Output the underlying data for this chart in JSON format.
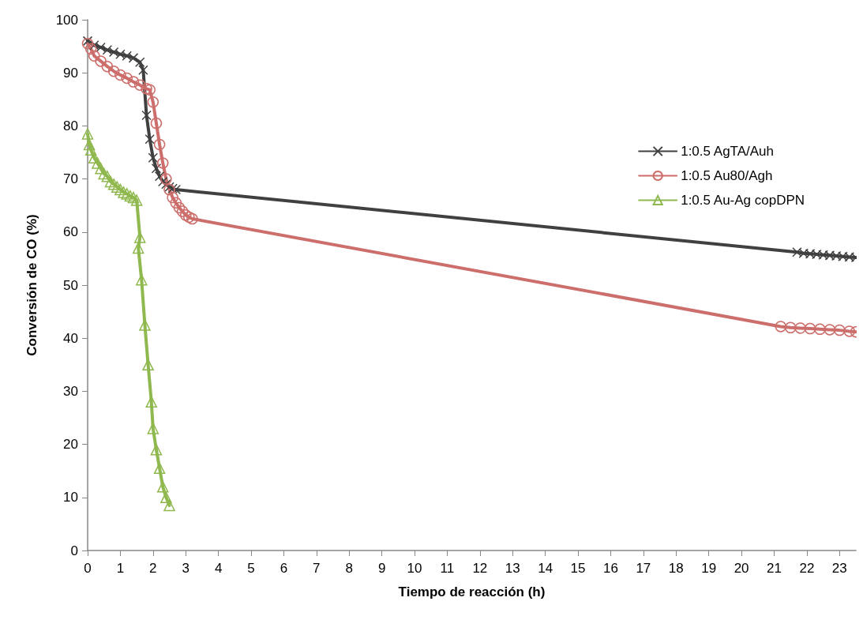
{
  "chart_data": {
    "type": "line",
    "xlabel": "Tiempo de reacción (h)",
    "ylabel": "Conversión de CO (%)",
    "xlim": [
      0,
      23.5
    ],
    "xticks": [
      0,
      1,
      2,
      3,
      4,
      5,
      6,
      7,
      8,
      9,
      10,
      11,
      12,
      13,
      14,
      15,
      16,
      17,
      18,
      19,
      20,
      21,
      22,
      23
    ],
    "ylim": [
      0,
      100
    ],
    "yticks": [
      0,
      10,
      20,
      30,
      40,
      50,
      60,
      70,
      80,
      90,
      100
    ],
    "grid": false,
    "legend": "top right",
    "line_style": "solid",
    "series": [
      {
        "name": "1:0.5 AgTA/Auh",
        "color": "#404040",
        "marker": "cross",
        "x": [
          0,
          0.2,
          0.4,
          0.6,
          0.8,
          1.0,
          1.2,
          1.4,
          1.6,
          1.7,
          1.8,
          1.9,
          2.0,
          2.1,
          2.2,
          2.3,
          2.4,
          2.5,
          2.6,
          2.7,
          21.7,
          21.9,
          22.1,
          22.3,
          22.5,
          22.7,
          22.9,
          23.1,
          23.3,
          23.5
        ],
        "values": [
          96,
          95.2,
          94.8,
          94.3,
          93.9,
          93.5,
          93.2,
          92.8,
          92,
          90.5,
          82,
          77.5,
          74,
          72,
          70.5,
          69.5,
          69,
          68.5,
          68.2,
          68,
          56.2,
          56,
          55.9,
          55.8,
          55.7,
          55.6,
          55.5,
          55.4,
          55.3,
          55.2
        ]
      },
      {
        "name": "1:0.5 Au80/Agh",
        "color": "#cc6e6b",
        "marker": "circle",
        "x": [
          0,
          0.1,
          0.2,
          0.4,
          0.6,
          0.8,
          1.0,
          1.2,
          1.4,
          1.6,
          1.8,
          1.9,
          2.0,
          2.1,
          2.2,
          2.3,
          2.4,
          2.5,
          2.6,
          2.7,
          2.8,
          2.9,
          3.0,
          3.1,
          3.2,
          21.2,
          21.5,
          21.8,
          22.1,
          22.4,
          22.7,
          23.0,
          23.3,
          23.5
        ],
        "values": [
          95.5,
          94.5,
          93.2,
          92.2,
          91.2,
          90.3,
          89.6,
          89,
          88.3,
          87.7,
          87,
          86.8,
          84.5,
          80.5,
          76.5,
          73,
          70,
          68,
          66.5,
          65.5,
          64.6,
          63.9,
          63.2,
          62.8,
          62.5,
          42.2,
          42,
          41.9,
          41.8,
          41.7,
          41.6,
          41.5,
          41.3,
          41.2
        ]
      },
      {
        "name": "1:0.5 Au-Ag copDPN",
        "color": "#8fb84e",
        "marker": "triangle",
        "x": [
          0,
          0.05,
          0.1,
          0.2,
          0.3,
          0.4,
          0.5,
          0.6,
          0.7,
          0.8,
          0.9,
          1.0,
          1.1,
          1.2,
          1.3,
          1.4,
          1.5,
          1.6,
          1.55,
          1.65,
          1.75,
          1.85,
          1.95,
          2.0,
          2.1,
          2.2,
          2.3,
          2.4,
          2.5
        ],
        "values": [
          78.5,
          76.5,
          75.5,
          74,
          73,
          72,
          71,
          70.5,
          69.5,
          69,
          68.5,
          68,
          67.5,
          67.2,
          66.8,
          66.5,
          66,
          59,
          57,
          51,
          42.5,
          35,
          28,
          23,
          19,
          15.5,
          12,
          10,
          8.5
        ]
      }
    ]
  }
}
